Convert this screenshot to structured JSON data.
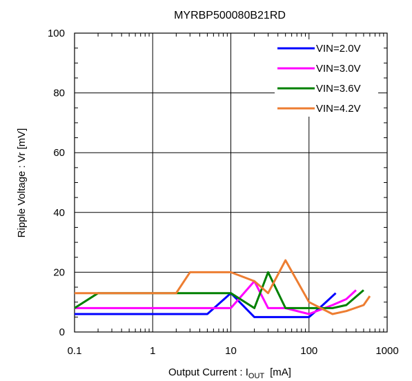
{
  "chart_data": {
    "type": "line",
    "title": "MYRBP500080B21RD",
    "xlabel_main": "Output  Current : I",
    "xlabel_sub": "OUT",
    "xlabel_unit": "[mA]",
    "ylabel": "Ripple Voltage : Vr [mV]",
    "x_scale": "log",
    "xlim": [
      0.1,
      1000
    ],
    "ylim": [
      0,
      100
    ],
    "x_ticks": [
      0.1,
      1,
      10,
      100,
      1000
    ],
    "x_tick_labels": [
      "0.1",
      "1",
      "10",
      "100",
      "1000"
    ],
    "y_ticks": [
      0,
      20,
      40,
      60,
      80,
      100
    ],
    "y_tick_labels": [
      "0",
      "20",
      "40",
      "60",
      "80",
      "100"
    ],
    "grid": true,
    "legend_position": "top-right",
    "series": [
      {
        "name": "VIN=2.0V",
        "color": "#0000ff",
        "x": [
          0.1,
          0.2,
          0.5,
          1,
          2,
          5,
          10,
          20,
          50,
          100,
          150,
          220
        ],
        "y": [
          6,
          6,
          6,
          6,
          6,
          6,
          13,
          5,
          5,
          5,
          9,
          13
        ]
      },
      {
        "name": "VIN=3.0V",
        "color": "#ff00ff",
        "x": [
          0.1,
          0.2,
          0.5,
          1,
          2,
          5,
          10,
          20,
          30,
          50,
          100,
          200,
          300,
          400
        ],
        "y": [
          8,
          8,
          8,
          8,
          8,
          8,
          8,
          17,
          8,
          8,
          6,
          9,
          11,
          14
        ]
      },
      {
        "name": "VIN=3.6V",
        "color": "#008000",
        "x": [
          0.1,
          0.2,
          0.5,
          1,
          2,
          5,
          10,
          20,
          30,
          50,
          100,
          200,
          300,
          500
        ],
        "y": [
          8,
          13,
          13,
          13,
          13,
          13,
          13,
          8,
          20,
          8,
          8,
          8,
          9,
          14
        ]
      },
      {
        "name": "VIN=4.2V",
        "color": "#ed7d31",
        "x": [
          0.1,
          0.2,
          0.5,
          1,
          2,
          3,
          5,
          10,
          20,
          30,
          50,
          100,
          200,
          300,
          500,
          600
        ],
        "y": [
          13,
          13,
          13,
          13,
          13,
          20,
          20,
          20,
          17,
          13,
          24,
          10,
          6,
          7,
          9,
          12
        ]
      }
    ]
  }
}
